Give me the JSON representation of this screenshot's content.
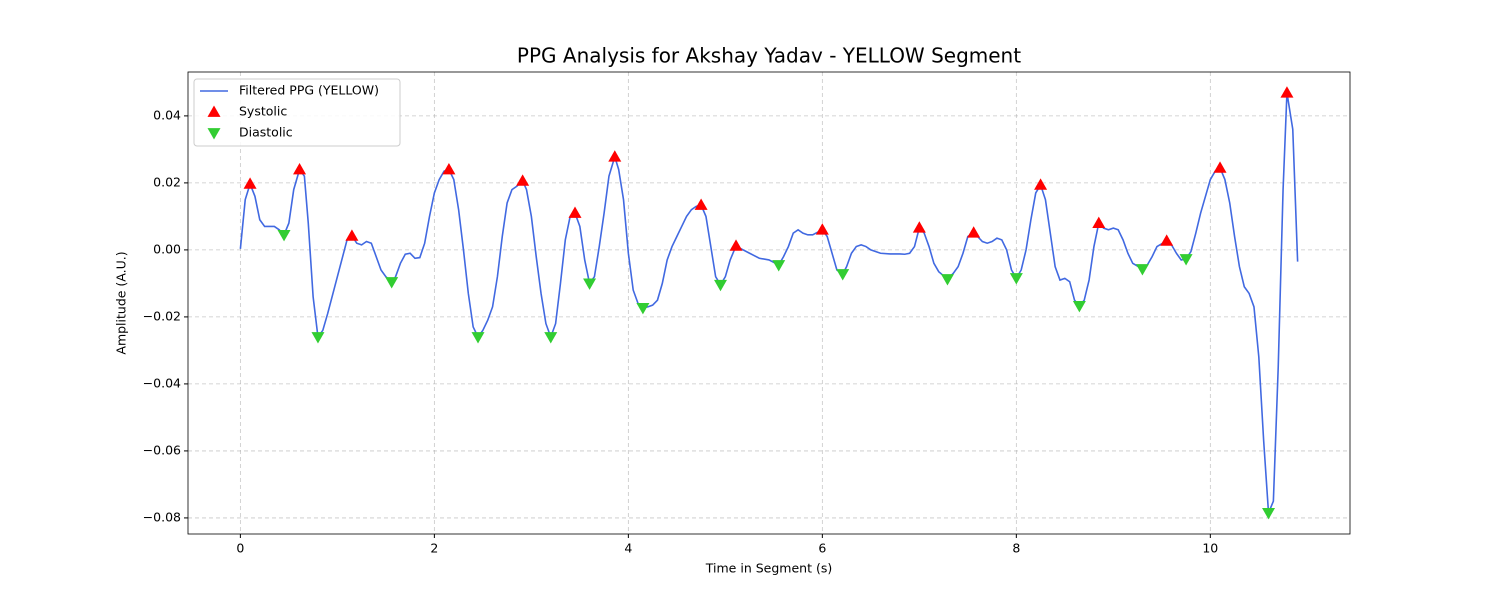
{
  "chart_data": {
    "type": "line",
    "title": "PPG Analysis for Akshay Yadav - YELLOW Segment",
    "x_label": "Time in Segment (s)",
    "y_label": "Amplitude (A.U.)",
    "xlim": [
      -0.54,
      11.44
    ],
    "ylim": [
      -0.0848,
      0.0531
    ],
    "xticks": [
      0,
      2,
      4,
      6,
      8,
      10
    ],
    "yticks": [
      {
        "value": -0.08,
        "label": "−0.08"
      },
      {
        "value": -0.06,
        "label": "−0.06"
      },
      {
        "value": -0.04,
        "label": "−0.04"
      },
      {
        "value": -0.02,
        "label": "−0.02"
      },
      {
        "value": 0,
        "label": "0.00"
      },
      {
        "value": 0.02,
        "label": "0.02"
      },
      {
        "value": 0.04,
        "label": "0.04"
      }
    ],
    "grid": true,
    "legend": "upper-left",
    "series": [
      {
        "name": "Filtered PPG (YELLOW)",
        "type": "line",
        "color": "#4169e1",
        "x": [
          0,
          0.05,
          0.1,
          0.15,
          0.2,
          0.25,
          0.3,
          0.35,
          0.4,
          0.45,
          0.5,
          0.55,
          0.61,
          0.66,
          0.7,
          0.75,
          0.8,
          0.85,
          0.9,
          1.0,
          1.1,
          1.15,
          1.2,
          1.25,
          1.3,
          1.35,
          1.4,
          1.45,
          1.5,
          1.56,
          1.6,
          1.65,
          1.7,
          1.75,
          1.8,
          1.85,
          1.9,
          1.95,
          2.0,
          2.05,
          2.1,
          2.15,
          2.2,
          2.25,
          2.3,
          2.35,
          2.4,
          2.45,
          2.5,
          2.55,
          2.6,
          2.65,
          2.7,
          2.75,
          2.8,
          2.85,
          2.91,
          2.95,
          3.0,
          3.05,
          3.1,
          3.15,
          3.2,
          3.25,
          3.3,
          3.35,
          3.4,
          3.45,
          3.5,
          3.55,
          3.6,
          3.65,
          3.7,
          3.75,
          3.8,
          3.86,
          3.9,
          3.95,
          4.0,
          4.05,
          4.1,
          4.15,
          4.2,
          4.25,
          4.3,
          4.35,
          4.4,
          4.45,
          4.5,
          4.55,
          4.6,
          4.65,
          4.7,
          4.75,
          4.8,
          4.85,
          4.9,
          4.95,
          5.0,
          5.05,
          5.11,
          5.15,
          5.25,
          5.35,
          5.45,
          5.55,
          5.6,
          5.65,
          5.7,
          5.75,
          5.8,
          5.85,
          5.9,
          6.0,
          6.05,
          6.1,
          6.15,
          6.21,
          6.25,
          6.3,
          6.35,
          6.4,
          6.45,
          6.5,
          6.6,
          6.7,
          6.8,
          6.85,
          6.9,
          6.95,
          7.0,
          7.05,
          7.1,
          7.15,
          7.2,
          7.29,
          7.35,
          7.4,
          7.45,
          7.5,
          7.56,
          7.6,
          7.65,
          7.7,
          7.75,
          7.8,
          7.85,
          7.9,
          7.95,
          8.0,
          8.05,
          8.1,
          8.15,
          8.2,
          8.25,
          8.3,
          8.35,
          8.4,
          8.45,
          8.5,
          8.55,
          8.6,
          8.65,
          8.7,
          8.75,
          8.8,
          8.85,
          8.9,
          8.95,
          9.0,
          9.05,
          9.1,
          9.15,
          9.2,
          9.3,
          9.35,
          9.4,
          9.45,
          9.55,
          9.6,
          9.65,
          9.7,
          9.75,
          9.8,
          9.85,
          9.9,
          9.95,
          10.0,
          10.05,
          10.1,
          10.15,
          10.2,
          10.25,
          10.3,
          10.35,
          10.4,
          10.45,
          10.5,
          10.55,
          10.6,
          10.65,
          10.7,
          10.75,
          10.79,
          10.85,
          10.9
        ],
        "values": [
          0.0003,
          0.015,
          0.0197,
          0.016,
          0.009,
          0.007,
          0.007,
          0.007,
          0.006,
          0.0045,
          0.008,
          0.018,
          0.024,
          0.022,
          0.008,
          -0.014,
          -0.026,
          -0.024,
          -0.019,
          -0.008,
          0.003,
          0.0042,
          0.002,
          0.0015,
          0.0025,
          0.002,
          -0.002,
          -0.006,
          -0.008,
          -0.0096,
          -0.008,
          -0.004,
          -0.0013,
          -0.001,
          -0.0025,
          -0.0023,
          0.002,
          0.01,
          0.017,
          0.021,
          0.0235,
          0.024,
          0.021,
          0.012,
          0.0,
          -0.013,
          -0.023,
          -0.026,
          -0.024,
          -0.021,
          -0.017,
          -0.008,
          0.004,
          0.014,
          0.018,
          0.019,
          0.0206,
          0.018,
          0.01,
          -0.002,
          -0.013,
          -0.022,
          -0.026,
          -0.022,
          -0.01,
          0.003,
          0.01,
          0.011,
          0.007,
          -0.003,
          -0.01,
          -0.008,
          0.001,
          0.011,
          0.022,
          0.0278,
          0.024,
          0.015,
          -0.001,
          -0.012,
          -0.016,
          -0.0173,
          -0.017,
          -0.0165,
          -0.015,
          -0.01,
          -0.003,
          0.001,
          0.004,
          0.007,
          0.01,
          0.012,
          0.013,
          0.0134,
          0.01,
          0.001,
          -0.008,
          -0.0104,
          -0.008,
          -0.003,
          0.0012,
          0.0005,
          -0.001,
          -0.0025,
          -0.003,
          -0.0045,
          -0.002,
          0.001,
          0.005,
          0.006,
          0.005,
          0.0045,
          0.0045,
          0.006,
          0.004,
          -0.001,
          -0.006,
          -0.0072,
          -0.005,
          -0.001,
          0.001,
          0.0015,
          0.001,
          0.0,
          -0.001,
          -0.0012,
          -0.0012,
          -0.0013,
          -0.001,
          0.001,
          0.0066,
          0.005,
          0.001,
          -0.004,
          -0.0065,
          -0.0087,
          -0.007,
          -0.005,
          -0.001,
          0.004,
          0.0051,
          0.004,
          0.0025,
          0.002,
          0.0025,
          0.0035,
          0.003,
          0.0,
          -0.006,
          -0.0084,
          -0.006,
          0.0,
          0.009,
          0.017,
          0.0194,
          0.015,
          0.005,
          -0.005,
          -0.009,
          -0.0085,
          -0.0095,
          -0.015,
          -0.0167,
          -0.015,
          -0.009,
          0.001,
          0.008,
          0.0065,
          0.006,
          0.0065,
          0.006,
          0.003,
          -0.001,
          -0.004,
          -0.0057,
          -0.0045,
          -0.002,
          0.001,
          0.0027,
          0.0015,
          -0.001,
          -0.003,
          -0.0027,
          -0.0005,
          0.005,
          0.011,
          0.016,
          0.021,
          0.0235,
          0.0245,
          0.021,
          0.014,
          0.004,
          -0.005,
          -0.011,
          -0.013,
          -0.017,
          -0.032,
          -0.057,
          -0.0785,
          -0.075,
          -0.035,
          0.018,
          0.0469,
          0.036,
          -0.0035
        ]
      },
      {
        "name": "Systolic",
        "type": "scatter",
        "marker": "triangle-up",
        "color": "#ff0000",
        "x": [
          0.1,
          0.61,
          1.15,
          2.15,
          2.91,
          3.45,
          3.86,
          4.75,
          5.11,
          6.0,
          7.0,
          7.56,
          8.25,
          8.85,
          9.55,
          10.1,
          10.79
        ],
        "values": [
          0.0197,
          0.024,
          0.0042,
          0.024,
          0.0206,
          0.011,
          0.0278,
          0.0134,
          0.0012,
          0.006,
          0.0066,
          0.0051,
          0.0194,
          0.008,
          0.0027,
          0.0245,
          0.0469
        ]
      },
      {
        "name": "Diastolic",
        "type": "scatter",
        "marker": "triangle-down",
        "color": "#32cd32",
        "x": [
          0.45,
          0.8,
          1.56,
          2.45,
          3.2,
          3.6,
          4.15,
          4.95,
          5.55,
          6.21,
          7.29,
          8.0,
          8.65,
          9.3,
          9.75,
          10.6
        ],
        "values": [
          0.0045,
          -0.026,
          -0.0096,
          -0.026,
          -0.026,
          -0.01,
          -0.0173,
          -0.0104,
          -0.0045,
          -0.0072,
          -0.0087,
          -0.0084,
          -0.0167,
          -0.0057,
          -0.0027,
          -0.0785
        ]
      }
    ]
  }
}
